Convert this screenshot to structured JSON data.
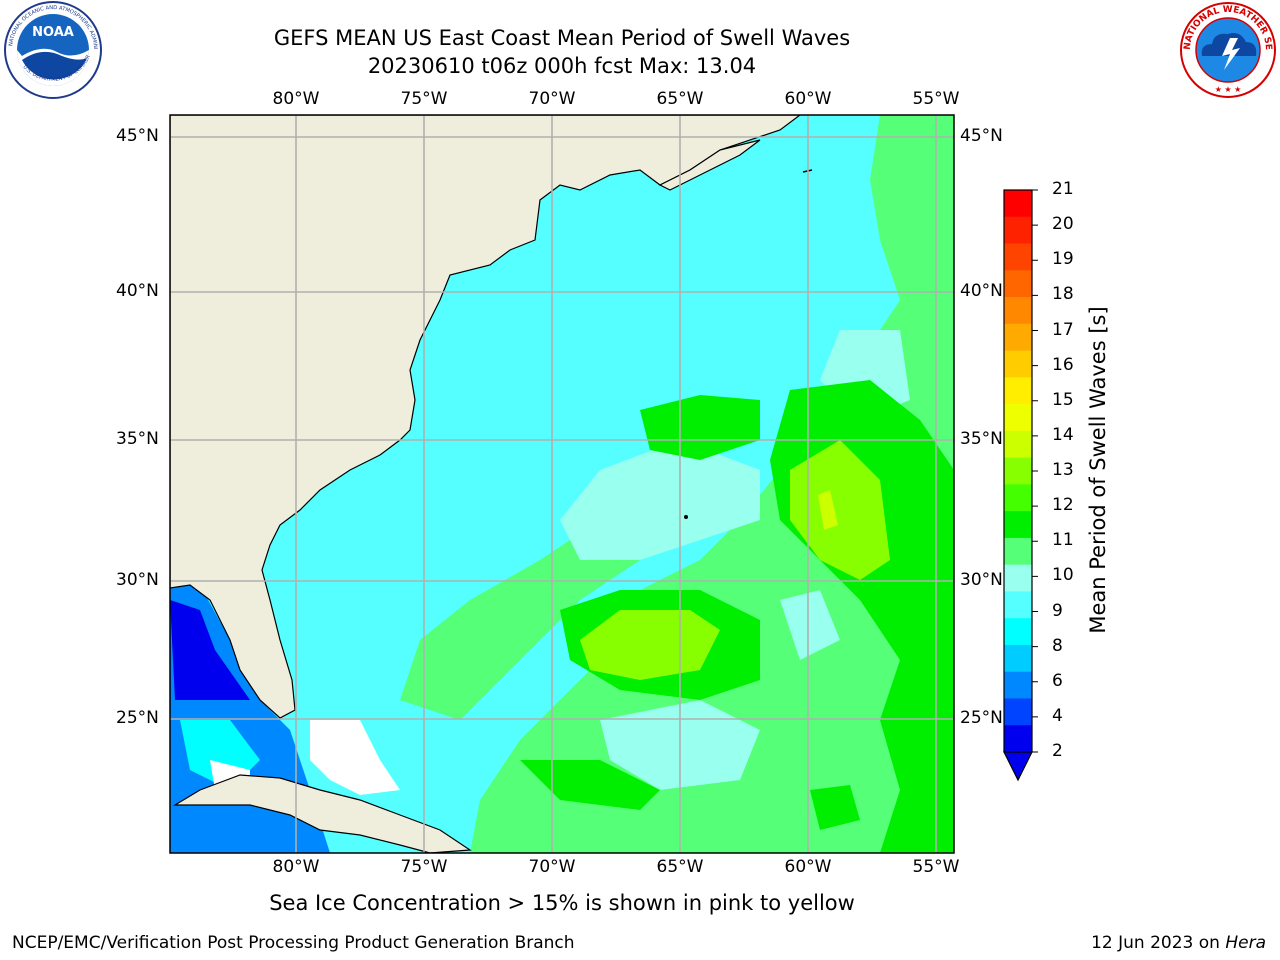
{
  "title_line1": "GEFS MEAN US East Coast Mean Period of Swell Waves",
  "title_line2": "20230610 t06z 000h fcst   Max: 13.04",
  "footnote": "Sea Ice Concentration > 15% is shown in pink to yellow",
  "credit": "NCEP/EMC/Verification Post Processing Product Generation Branch",
  "date_text": "12 Jun 2023 on ",
  "host": "Hera",
  "logos": {
    "left": {
      "text": "NOAA",
      "ring_text": "NATIONAL OCEANIC AND ATMOSPHERIC ADMINISTRATION",
      "ring_text_bottom": "U.S. DEPARTMENT OF COMMERCE",
      "icon": "noaa-logo-icon"
    },
    "right": {
      "ring_text": "NATIONAL WEATHER SERVICE",
      "icon": "nws-logo-icon"
    }
  },
  "map": {
    "lon_labels": [
      "80°W",
      "75°W",
      "70°W",
      "65°W",
      "60°W",
      "55°W"
    ],
    "lat_labels": [
      "45°N",
      "40°N",
      "35°N",
      "30°N",
      "25°N"
    ],
    "land_color": "#efeedd",
    "grid_color": "#b0b0b0"
  },
  "colorbar": {
    "label": "Mean Period of Swell Waves [s]",
    "ticks": [
      "21",
      "20",
      "19",
      "18",
      "17",
      "16",
      "15",
      "14",
      "13",
      "12",
      "11",
      "10",
      "9",
      "8",
      "6",
      "4",
      "2"
    ],
    "colors_top_to_bottom": [
      "#ff0000",
      "#ff2200",
      "#ff4400",
      "#ff6600",
      "#ff8800",
      "#ffaa00",
      "#ffcc00",
      "#ffee00",
      "#eeff00",
      "#ccff00",
      "#88ff00",
      "#44ff00",
      "#00ee00",
      "#55ff77",
      "#99ffee",
      "#55ffff",
      "#00ffff",
      "#00ccff",
      "#0088ff",
      "#0044ff",
      "#0000ee"
    ],
    "extend": "min"
  }
}
